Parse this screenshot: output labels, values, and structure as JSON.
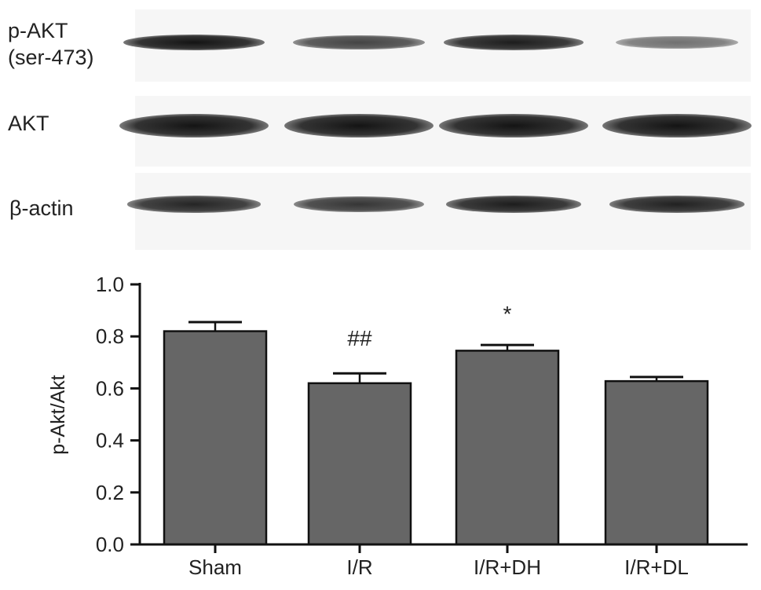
{
  "blot": {
    "lane_count": 4,
    "rows": [
      {
        "name": "p-akt",
        "label_line1": "p-AKT",
        "label_line2": "(ser-473)",
        "intensities": [
          1.0,
          0.72,
          0.95,
          0.45
        ]
      },
      {
        "name": "akt",
        "label_line1": "AKT",
        "label_line2": "",
        "intensities": [
          1.0,
          1.0,
          1.0,
          1.0
        ]
      },
      {
        "name": "beta-actin",
        "label_line1": "β-actin",
        "label_line2": "",
        "intensities": [
          0.9,
          0.8,
          0.95,
          0.92
        ]
      }
    ]
  },
  "chart_data": {
    "type": "bar",
    "categories": [
      "Sham",
      "I/R",
      "I/R+DH",
      "I/R+DL"
    ],
    "values": [
      0.82,
      0.62,
      0.745,
      0.628
    ],
    "errors": [
      0.035,
      0.038,
      0.022,
      0.016
    ],
    "annotations": [
      "",
      "##",
      "*",
      ""
    ],
    "ylabel": "p-Akt/Akt",
    "ylim": [
      0.0,
      1.0
    ],
    "yticks": [
      "0.0",
      "0.2",
      "0.4",
      "0.6",
      "0.8",
      "1.0"
    ],
    "bar_color": "#666666",
    "grid": false
  }
}
